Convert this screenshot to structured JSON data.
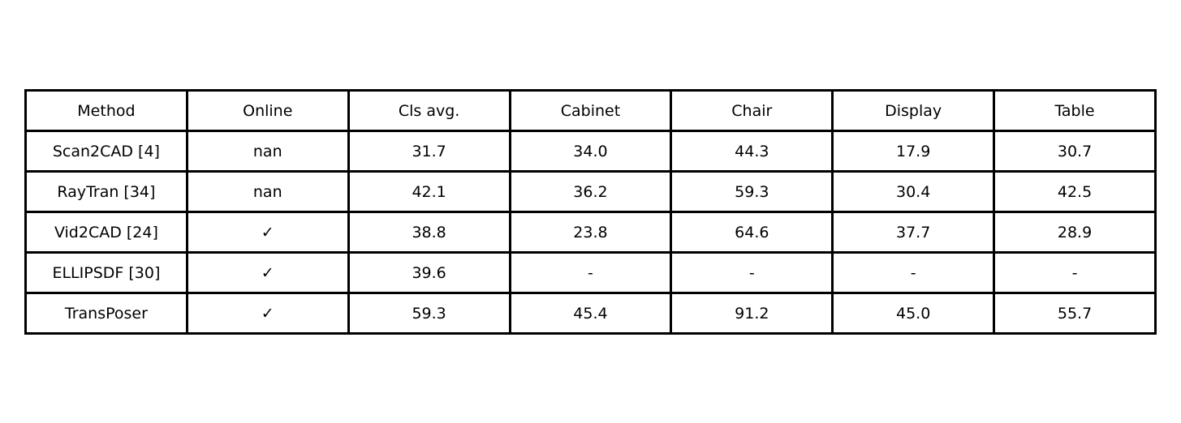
{
  "chart_data": {
    "type": "table",
    "columns": [
      "Method",
      "Online",
      "Cls avg.",
      "Cabinet",
      "Chair",
      "Display",
      "Table"
    ],
    "rows": [
      [
        "Scan2CAD [4]",
        "nan",
        "31.7",
        "34.0",
        "44.3",
        "17.9",
        "30.7"
      ],
      [
        "RayTran [34]",
        "nan",
        "42.1",
        "36.2",
        "59.3",
        "30.4",
        "42.5"
      ],
      [
        "Vid2CAD [24]",
        "✓",
        "38.8",
        "23.8",
        "64.6",
        "37.7",
        "28.9"
      ],
      [
        "ELLIPSDF [30]",
        "✓",
        "39.6",
        "-",
        "-",
        "-",
        "-"
      ],
      [
        "TransPoser",
        "✓",
        "59.3",
        "45.4",
        "91.2",
        "45.0",
        "55.7"
      ]
    ]
  }
}
